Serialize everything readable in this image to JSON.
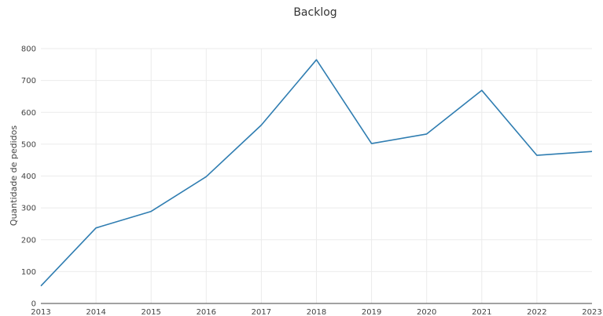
{
  "chart_data": {
    "type": "line",
    "title": "Backlog",
    "xlabel": "",
    "ylabel": "Quantidade de pedidos",
    "x": [
      "2013",
      "2014",
      "2015",
      "2016",
      "2017",
      "2018",
      "2019",
      "2020",
      "2021",
      "2022",
      "2023"
    ],
    "series": [
      {
        "values": [
          55,
          237,
          289,
          398,
          560,
          765,
          502,
          532,
          669,
          465,
          477
        ]
      }
    ],
    "ylim": [
      0,
      800
    ],
    "yticks": [
      0,
      100,
      200,
      300,
      400,
      500,
      600,
      700,
      800
    ],
    "grid": true,
    "legend": "none",
    "colors": {
      "line": "#2f7db1",
      "grid": "#ebebeb",
      "axis": "#444444"
    }
  }
}
